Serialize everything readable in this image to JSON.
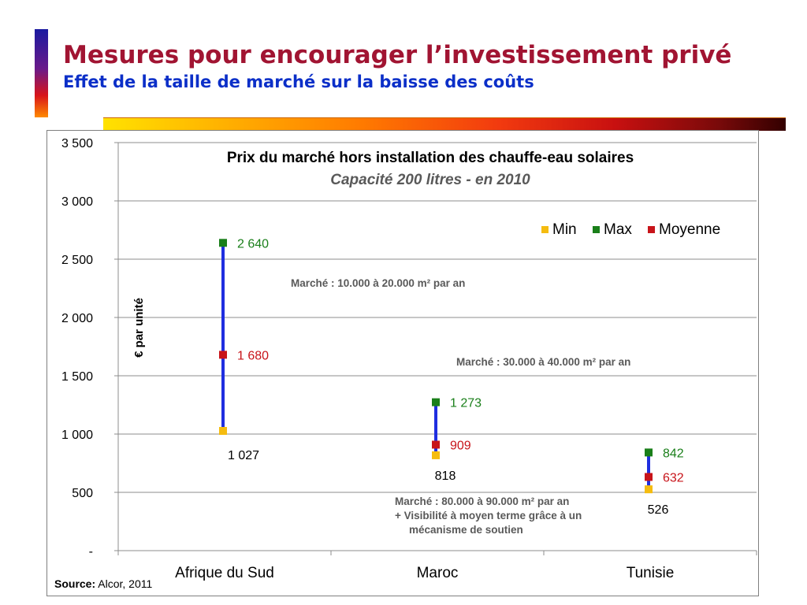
{
  "header": {
    "title": "Mesures pour encourager l’investissement privé",
    "subtitle": "Effet de la taille de marché sur la baisse des coûts"
  },
  "colors": {
    "title": "#a11432",
    "subtitle": "#0b2fc8",
    "range_line": "#1f2ee0",
    "min": "#f5bc10",
    "max": "#1a7f1a",
    "moyenne": "#c8141a"
  },
  "footer": {
    "source_label": "Source:",
    "source_value": "Alcor, 2011"
  },
  "chart_data": {
    "type": "scatter",
    "title": "Prix du marché hors installation des chauffe-eau solaires",
    "subtitle": "Capacité 200 litres - en 2010",
    "ylabel": "€ par unité",
    "xlabel": "",
    "ylim": [
      0,
      3500
    ],
    "yticks": [
      0,
      500,
      1000,
      1500,
      2000,
      2500,
      3000,
      3500
    ],
    "ytick_labels": [
      "-",
      "500",
      "1 000",
      "1 500",
      "2 000",
      "2 500",
      "3 000",
      "3 500"
    ],
    "grid": true,
    "legend_position": "top-right",
    "categories": [
      "Afrique du Sud",
      "Maroc",
      "Tunisie"
    ],
    "series": [
      {
        "name": "Min",
        "values": [
          1027,
          818,
          526
        ],
        "labels": [
          "1 027",
          "818",
          "526"
        ]
      },
      {
        "name": "Max",
        "values": [
          2640,
          1273,
          842
        ],
        "labels": [
          "2 640",
          "1 273",
          "842"
        ]
      },
      {
        "name": "Moyenne",
        "values": [
          1680,
          909,
          632
        ],
        "labels": [
          "1 680",
          "909",
          "632"
        ]
      }
    ],
    "annotations": [
      {
        "category": "Afrique du Sud",
        "lines": [
          "Marché : 10.000 à 20.000 m² par an"
        ]
      },
      {
        "category": "Maroc",
        "lines": [
          "Marché : 30.000 à 40.000 m² par an"
        ]
      },
      {
        "category": "Tunisie",
        "lines": [
          "Marché : 80.000 à 90.000 m² par an",
          "+ Visibilité à moyen terme grâce à un",
          "mécanisme de soutien"
        ]
      }
    ]
  }
}
